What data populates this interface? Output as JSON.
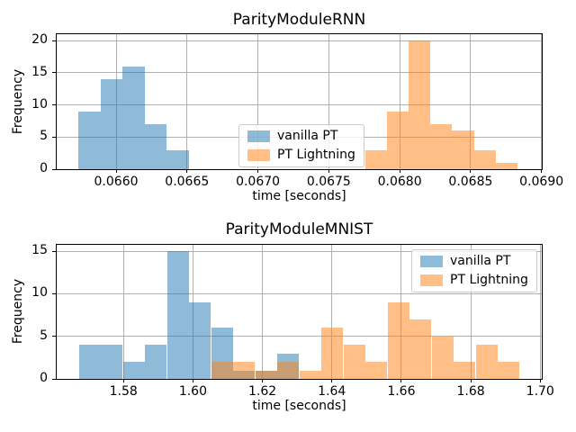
{
  "figure": {
    "background": "#ffffff"
  },
  "colors": {
    "vanilla_pt": "#1f77b4",
    "pt_lightning": "#ff7f0e",
    "bar_alpha": 0.5,
    "grid": "#b0b0b0",
    "spine": "#000000",
    "text": "#000000",
    "legend_border": "#cccccc"
  },
  "chart_data": [
    {
      "type": "histogram",
      "title": "ParityModuleRNN",
      "xlabel": "time [seconds]",
      "ylabel": "Frequency",
      "xlim": [
        0.065581,
        0.069002
      ],
      "ylim": [
        0,
        21
      ],
      "grid": true,
      "legend_position": "center",
      "xticks": {
        "values": [
          0.066,
          0.0665,
          0.067,
          0.0675,
          0.068,
          0.0685,
          0.069
        ],
        "labels": [
          "0.0660",
          "0.0665",
          "0.0670",
          "0.0675",
          "0.0680",
          "0.0685",
          "0.0690"
        ]
      },
      "yticks": {
        "values": [
          0,
          5,
          10,
          15,
          20
        ],
        "labels": [
          "0",
          "5",
          "10",
          "15",
          "20"
        ]
      },
      "series": [
        {
          "name": "vanilla PT",
          "color": "#1f77b4",
          "alpha": 0.5,
          "bin_edges": [
            0.065736,
            0.065891,
            0.066046,
            0.066201,
            0.066356,
            0.066511
          ],
          "counts": [
            9,
            14,
            16,
            7,
            3
          ]
        },
        {
          "name": "PT Lightning",
          "color": "#ff7f0e",
          "alpha": 0.5,
          "bin_edges": [
            0.067755,
            0.067909,
            0.068062,
            0.068216,
            0.068369,
            0.068523,
            0.068676,
            0.06883
          ],
          "counts": [
            3,
            9,
            20,
            7,
            6,
            3,
            1
          ]
        }
      ]
    },
    {
      "type": "histogram",
      "title": "ParityModuleMNIST",
      "xlabel": "time [seconds]",
      "ylabel": "Frequency",
      "xlim": [
        1.56075,
        1.70045
      ],
      "ylim": [
        0,
        15.75
      ],
      "grid": true,
      "legend_position": "upper-right",
      "xticks": {
        "values": [
          1.58,
          1.6,
          1.62,
          1.64,
          1.66,
          1.68,
          1.7
        ],
        "labels": [
          "1.58",
          "1.60",
          "1.62",
          "1.64",
          "1.66",
          "1.68",
          "1.70"
        ]
      },
      "yticks": {
        "values": [
          0,
          5,
          10,
          15
        ],
        "labels": [
          "0",
          "5",
          "10",
          "15"
        ]
      },
      "series": [
        {
          "name": "vanilla PT",
          "color": "#1f77b4",
          "alpha": 0.5,
          "bin_edges": [
            1.5671,
            1.5735,
            1.5798,
            1.5862,
            1.5925,
            1.5989,
            1.6052,
            1.6116,
            1.6179,
            1.6243,
            1.6306
          ],
          "counts": [
            4,
            4,
            2,
            4,
            15,
            9,
            6,
            1,
            1,
            3
          ]
        },
        {
          "name": "PT Lightning",
          "color": "#ff7f0e",
          "alpha": 0.5,
          "bin_edges": [
            1.6052,
            1.6116,
            1.6179,
            1.6243,
            1.6306,
            1.637,
            1.6433,
            1.6497,
            1.656,
            1.6624,
            1.6687,
            1.6751,
            1.6814,
            1.6878,
            1.6941
          ],
          "counts": [
            2,
            2,
            1,
            2,
            1,
            6,
            4,
            2,
            9,
            7,
            5,
            2,
            4,
            2
          ]
        }
      ]
    }
  ]
}
